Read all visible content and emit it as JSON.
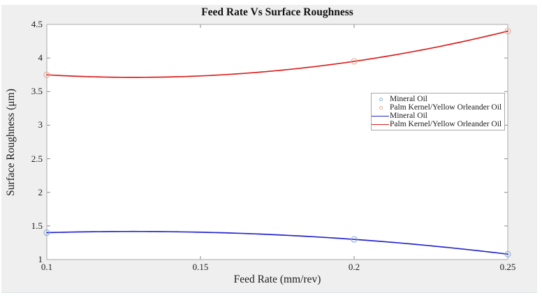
{
  "chart_data": {
    "type": "scatter",
    "title": "Feed Rate Vs Surface Roughness",
    "xlabel": "Feed Rate (mm/rev)",
    "ylabel": "Surface Roughness (μm)",
    "xlim": [
      0.1,
      0.25
    ],
    "ylim": [
      1,
      4.5
    ],
    "xticks": [
      {
        "value": 0.1,
        "label": "0.1"
      },
      {
        "value": 0.15,
        "label": "0.15"
      },
      {
        "value": 0.2,
        "label": "0.2"
      },
      {
        "value": 0.25,
        "label": "0.25"
      }
    ],
    "yticks": [
      {
        "value": 1,
        "label": "1"
      },
      {
        "value": 1.5,
        "label": "1.5"
      },
      {
        "value": 2,
        "label": "2"
      },
      {
        "value": 2.5,
        "label": "2.5"
      },
      {
        "value": 3,
        "label": "3"
      },
      {
        "value": 3.5,
        "label": "3.5"
      },
      {
        "value": 4,
        "label": "4"
      },
      {
        "value": 4.5,
        "label": "4.5"
      }
    ],
    "grid": false,
    "box": true,
    "legend_position": "middle-right-inside",
    "series": [
      {
        "name": "Mineral Oil",
        "render": "markers",
        "marker": "circle-open",
        "color": "#8ab0d8",
        "x": [
          0.1,
          0.2,
          0.25
        ],
        "y": [
          1.4,
          1.3,
          1.08
        ]
      },
      {
        "name": "Palm Kernel/Yellow Orleander Oil",
        "render": "markers",
        "marker": "circle-open",
        "color": "#e2ab93",
        "x": [
          0.1,
          0.2,
          0.25
        ],
        "y": [
          3.75,
          3.95,
          4.4
        ]
      },
      {
        "name": "Mineral Oil",
        "render": "quadratic-fit-line",
        "color": "#2626cf",
        "x": [
          0.1,
          0.2,
          0.25
        ],
        "y": [
          1.4,
          1.3,
          1.08
        ]
      },
      {
        "name": "Palm Kernel/Yellow Orleander Oil",
        "render": "quadratic-fit-line",
        "color": "#dc1f1f",
        "x": [
          0.1,
          0.2,
          0.25
        ],
        "y": [
          3.75,
          3.95,
          4.4
        ]
      }
    ],
    "legend": [
      {
        "kind": "marker",
        "color": "#8ab0d8",
        "label": "Mineral Oil"
      },
      {
        "kind": "marker",
        "color": "#e2ab93",
        "label": "Palm Kernel/Yellow Orleander Oil"
      },
      {
        "kind": "line",
        "color": "#2626cf",
        "label": "Mineral Oil"
      },
      {
        "kind": "line",
        "color": "#dc1f1f",
        "label": "Palm Kernel/Yellow Orleander Oil"
      }
    ],
    "colors": {
      "figure_background": "#efefef",
      "plot_background": "#ffffff",
      "axis_box": "#ababab",
      "tick": "#8a8a8a",
      "text": "#1c1c1c"
    }
  }
}
